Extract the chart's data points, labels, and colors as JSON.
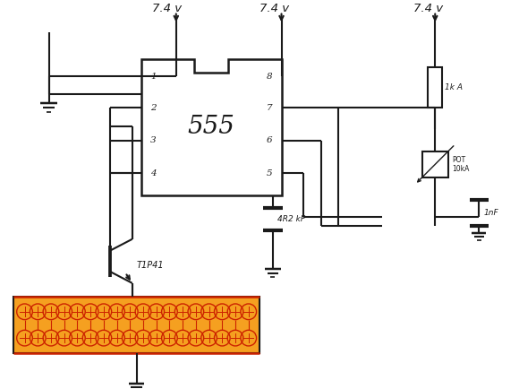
{
  "bg_color": "#ffffff",
  "line_color": "#1a1a1a",
  "lw": 1.5,
  "voltage_label": "7.4 v",
  "cap_label": "4R2 kF",
  "transistor_label": "T1P41",
  "res_label": "1k A",
  "pot_label": "POT\n10kA",
  "cap2_label": "1nF",
  "led_orange": "#f5a020",
  "led_red": "#cc2200",
  "led_border": "#333333",
  "n_led_cols": 18,
  "n_led_rows": 2
}
